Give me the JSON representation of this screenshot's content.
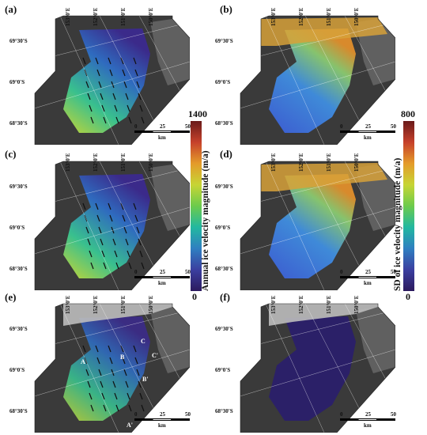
{
  "figure": {
    "panels": [
      {
        "label": "(a)",
        "type": "annual"
      },
      {
        "label": "(b)",
        "type": "sd"
      },
      {
        "label": "(c)",
        "type": "annual"
      },
      {
        "label": "(d)",
        "type": "sd"
      },
      {
        "label": "(e)",
        "type": "annual_masked",
        "profiles": [
          "A",
          "B",
          "C",
          "A'",
          "B'",
          "C'"
        ]
      },
      {
        "label": "(f)",
        "type": "sd_masked"
      }
    ],
    "longitudes": [
      "153°0'E",
      "152°0'E",
      "151°0'E",
      "150°0'E"
    ],
    "latitudes": [
      "69°30'S",
      "69°0'S",
      "68°30'S"
    ],
    "scale": {
      "ticks": [
        "0",
        "25",
        "50"
      ],
      "unit": "km"
    },
    "colorbars": [
      {
        "title": "Annual ice velocity magnitude (m/a)",
        "max": "1400",
        "min": "0"
      },
      {
        "title": "SD of ice velocity magnitude (m/a)",
        "max": "800",
        "min": "0"
      }
    ],
    "colors": {
      "low": "#3b1f7a",
      "mid": "#22b8a0",
      "high": "#b8322a",
      "background": "#3a3a3a"
    }
  }
}
